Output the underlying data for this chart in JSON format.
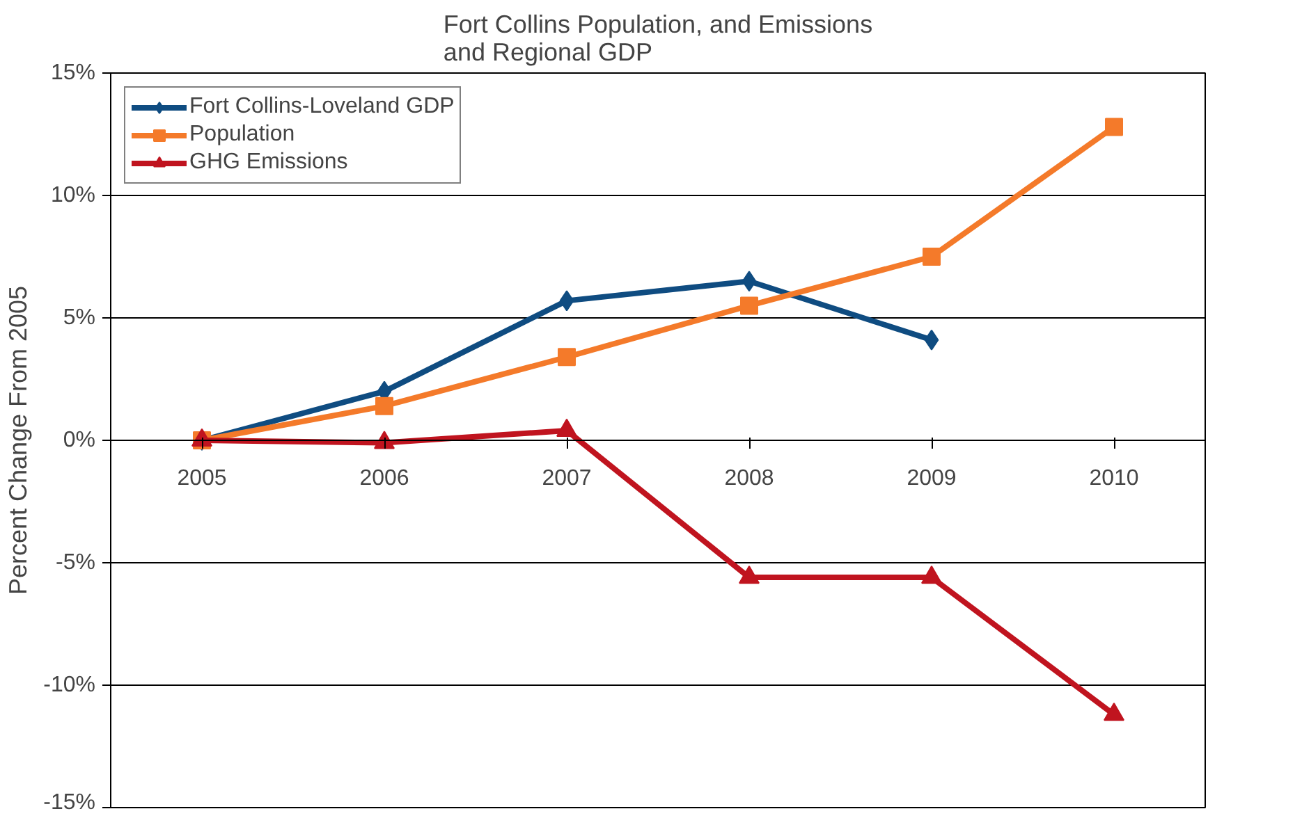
{
  "chart_data": {
    "type": "line",
    "title": "Fort Collins Population, and Emissions\nand Regional GDP",
    "ylabel": "Percent Change From 2005",
    "categories": [
      "2005",
      "2006",
      "2007",
      "2008",
      "2009",
      "2010"
    ],
    "series": [
      {
        "name": "Fort Collins-Loveland GDP",
        "color": "#0f4c81",
        "marker": "diamond",
        "values": [
          0,
          2.0,
          5.7,
          6.5,
          4.1,
          null
        ]
      },
      {
        "name": "Population",
        "color": "#f47a2a",
        "marker": "square",
        "values": [
          0,
          1.4,
          3.4,
          5.5,
          7.5,
          12.8
        ]
      },
      {
        "name": "GHG Emissions",
        "color": "#c0141f",
        "marker": "triangle",
        "values": [
          0,
          -0.1,
          0.4,
          -5.6,
          -5.6,
          -11.2
        ]
      }
    ],
    "ylim": [
      -15,
      15
    ],
    "yticks": [
      {
        "value": -15,
        "label": "-15%"
      },
      {
        "value": -10,
        "label": "-10%"
      },
      {
        "value": -5,
        "label": "-5%"
      },
      {
        "value": 0,
        "label": "0%"
      },
      {
        "value": 5,
        "label": "5%"
      },
      {
        "value": 10,
        "label": "10%"
      },
      {
        "value": 15,
        "label": "15%"
      }
    ],
    "grid": "y",
    "legend": "top left",
    "line_style": "solid"
  }
}
